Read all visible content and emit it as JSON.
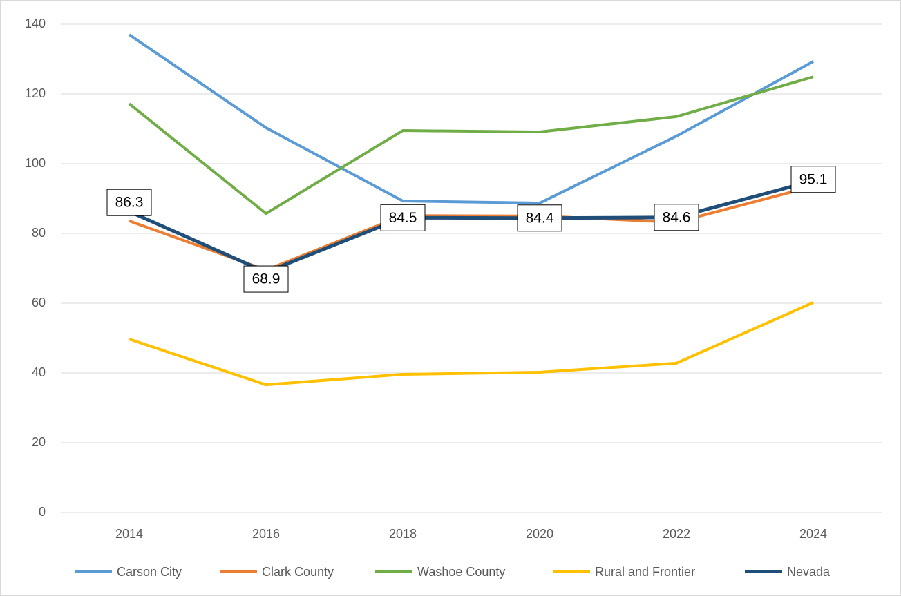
{
  "chart_data": {
    "type": "line",
    "categories": [
      "2014",
      "2016",
      "2018",
      "2020",
      "2022",
      "2024"
    ],
    "series": [
      {
        "name": "Carson City",
        "color": "#5b9bd5",
        "values": [
          137.0,
          110.3,
          89.3,
          88.7,
          107.9,
          129.3
        ]
      },
      {
        "name": "Clark County",
        "color": "#ed7d31",
        "values": [
          83.6,
          69.5,
          85.1,
          85.0,
          83.2,
          93.5
        ]
      },
      {
        "name": "Washoe County",
        "color": "#70ad47",
        "values": [
          117.2,
          85.7,
          109.5,
          109.1,
          113.5,
          124.9
        ]
      },
      {
        "name": "Rural and Frontier",
        "color": "#ffc000",
        "values": [
          49.7,
          36.6,
          39.6,
          40.2,
          42.8,
          60.2
        ]
      },
      {
        "name": "Nevada",
        "color": "#1f4e79",
        "values": [
          86.3,
          68.9,
          84.5,
          84.4,
          84.6,
          95.1
        ],
        "data_labels": true
      }
    ],
    "ylim": [
      0,
      140
    ],
    "yticks": [
      0,
      20,
      40,
      60,
      80,
      100,
      120,
      140
    ],
    "grid": true,
    "legend": "bottom"
  }
}
